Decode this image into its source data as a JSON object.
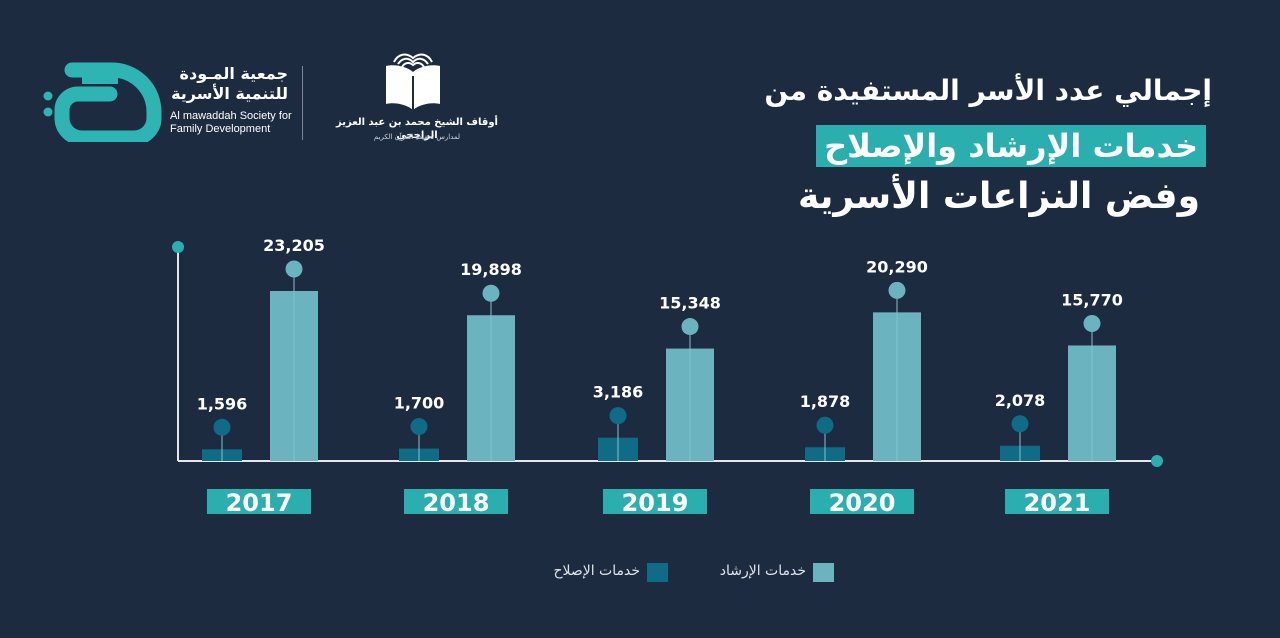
{
  "header": {
    "org1_name_ar_line1": "جمعية المـودة",
    "org1_name_ar_line2": "للتنمية الأسرية",
    "org1_name_en_line1": "Al mawaddah Society for",
    "org1_name_en_line2": "Family Development",
    "org2_name_ar": "أوقاف الشيخ محمد بن عبد العزيز الراجحي",
    "org2_sub_ar": "لمدارس تحفيظ القرآن الكريم"
  },
  "title": {
    "line1": "إجمالي عدد الأسر المستفيدة من",
    "line2": "خدمات الإرشاد والإصلاح",
    "line3": "وفض النزاعات الأسرية"
  },
  "colors": {
    "background": "#1c2b40",
    "irshad": "#6ab3bf",
    "islah": "#0f6b86",
    "accent": "#2aaeae",
    "axis": "#e6e6e6"
  },
  "chart_data": {
    "type": "bar",
    "categories": [
      "2017",
      "2018",
      "2019",
      "2020",
      "2021"
    ],
    "series": [
      {
        "name": "خدمات الإصلاح",
        "values": [
          1596,
          1700,
          3186,
          1878,
          2078
        ]
      },
      {
        "name": "خدمات الإرشاد",
        "values": [
          23205,
          19898,
          15348,
          20290,
          15770
        ]
      }
    ],
    "value_labels": {
      "islah": [
        "1,596",
        "1,700",
        "3,186",
        "1,878",
        "2,078"
      ],
      "irshad": [
        "23,205",
        "19,898",
        "15,348",
        "20,290",
        "15,770"
      ]
    },
    "legend": [
      {
        "label": "خدمات الإرشاد",
        "color": "#6ab3bf"
      },
      {
        "label": "خدمات الإصلاح",
        "color": "#0f6b86"
      }
    ],
    "legend_position": "bottom",
    "grid": false
  }
}
